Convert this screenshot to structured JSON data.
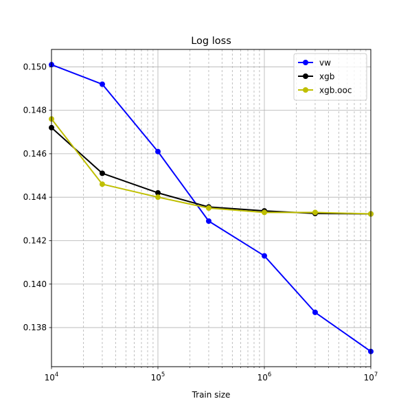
{
  "chart_data": {
    "type": "line",
    "title": "Log loss",
    "xlabel": "Train size",
    "ylabel": "",
    "xscale": "log",
    "xlim": [
      10000,
      10000000
    ],
    "ylim": [
      0.1362,
      0.1508
    ],
    "x_major_ticks": [
      10000,
      100000,
      1000000,
      10000000
    ],
    "x_tick_labels": [
      {
        "base": "10",
        "exp": "4"
      },
      {
        "base": "10",
        "exp": "5"
      },
      {
        "base": "10",
        "exp": "6"
      },
      {
        "base": "10",
        "exp": "7"
      }
    ],
    "y_ticks": [
      0.138,
      0.14,
      0.142,
      0.144,
      0.146,
      0.148,
      0.15
    ],
    "y_tick_labels": [
      "0.138",
      "0.140",
      "0.142",
      "0.144",
      "0.146",
      "0.148",
      "0.150"
    ],
    "grid": "major solid, minor x dashed",
    "legend_position": "upper right",
    "x": [
      10000,
      30000,
      100000,
      300000,
      1000000,
      3000000,
      10000000
    ],
    "series": [
      {
        "name": "vw",
        "color": "#0000ff",
        "values": [
          0.1501,
          0.1492,
          0.1461,
          0.1429,
          0.1413,
          0.1387,
          0.1369
        ]
      },
      {
        "name": "xgb",
        "color": "#000000",
        "values": [
          0.1472,
          0.1451,
          0.1442,
          0.14355,
          0.14337,
          0.14325,
          0.14323
        ]
      },
      {
        "name": "xgb.ooc",
        "color": "#bfbf00",
        "values": [
          0.1476,
          0.1446,
          0.144,
          0.1435,
          0.1433,
          0.1433,
          0.14323
        ]
      }
    ]
  }
}
